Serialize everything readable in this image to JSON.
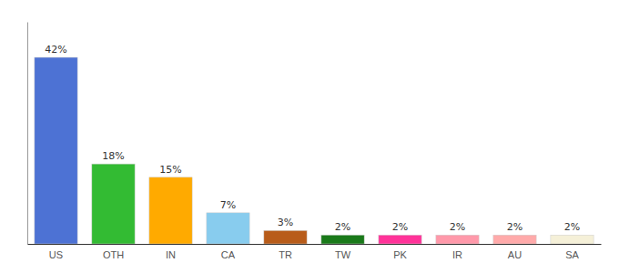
{
  "chart_data": {
    "type": "bar",
    "categories": [
      "US",
      "OTH",
      "IN",
      "CA",
      "TR",
      "TW",
      "PK",
      "IR",
      "AU",
      "SA"
    ],
    "values": [
      42,
      18,
      15,
      7,
      3,
      2,
      2,
      2,
      2,
      2
    ],
    "value_labels": [
      "42%",
      "18%",
      "15%",
      "7%",
      "3%",
      "2%",
      "2%",
      "2%",
      "2%",
      "2%"
    ],
    "colors": [
      "#4d72d4",
      "#33bb33",
      "#ffaa00",
      "#88ccee",
      "#b85c1a",
      "#1a7a1a",
      "#ff3399",
      "#ff99aa",
      "#ffaaaa",
      "#f5f0d8"
    ],
    "ylim": [
      0,
      50
    ],
    "data_labels": true,
    "tick_labels": "x",
    "grid": false
  }
}
